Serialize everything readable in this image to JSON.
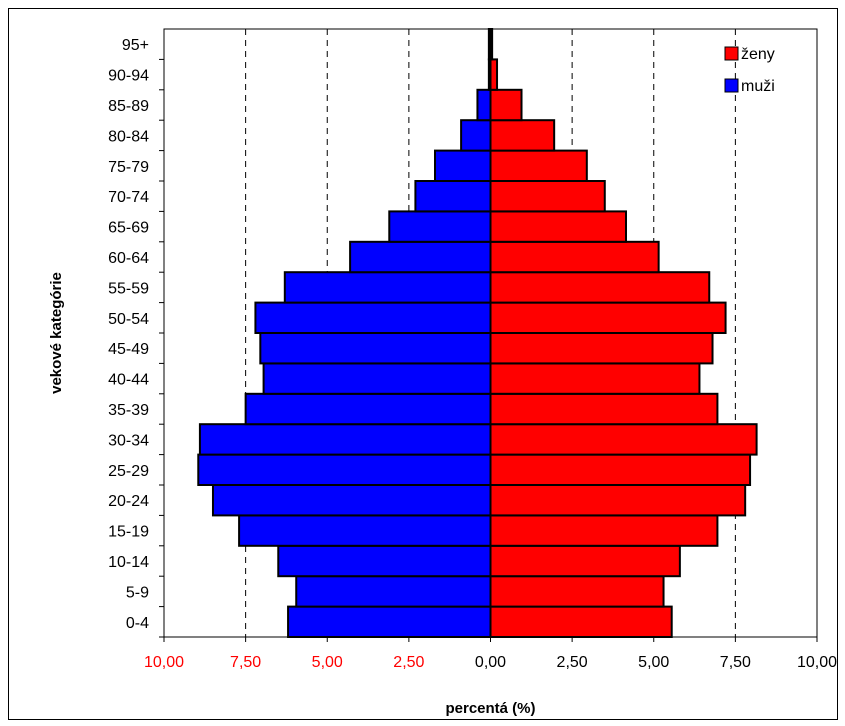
{
  "chart_data": {
    "type": "bar",
    "orientation": "horizontal",
    "layout": "population-pyramid",
    "categories": [
      "0-4",
      "5-9",
      "10-14",
      "15-19",
      "20-24",
      "25-29",
      "30-34",
      "35-39",
      "40-44",
      "45-49",
      "50-54",
      "55-59",
      "60-64",
      "65-69",
      "70-74",
      "75-79",
      "80-84",
      "85-89",
      "90-94",
      "95+"
    ],
    "series": [
      {
        "name": "muži",
        "color": "#0000FF",
        "side": "left",
        "values": [
          6.2,
          5.95,
          6.5,
          7.7,
          8.5,
          8.95,
          8.9,
          7.5,
          6.95,
          7.05,
          7.2,
          6.3,
          4.3,
          3.1,
          2.3,
          1.7,
          0.9,
          0.4,
          0.05,
          0.05
        ]
      },
      {
        "name": "ženy",
        "color": "#FF0000",
        "side": "right",
        "values": [
          5.55,
          5.3,
          5.8,
          6.95,
          7.8,
          7.95,
          8.15,
          6.95,
          6.4,
          6.8,
          7.2,
          6.7,
          5.15,
          4.15,
          3.5,
          2.95,
          1.95,
          0.95,
          0.2,
          0.05
        ]
      }
    ],
    "xlabel": "percentá (%)",
    "ylabel": "vekové kategórie",
    "xlim": [
      -10,
      10
    ],
    "xticks": [
      {
        "label": "10,00",
        "color": "#FF0000"
      },
      {
        "label": "7,50",
        "color": "#FF0000"
      },
      {
        "label": "5,00",
        "color": "#FF0000"
      },
      {
        "label": "2,50",
        "color": "#FF0000"
      },
      {
        "label": "0,00",
        "color": "#000000"
      },
      {
        "label": "2,50",
        "color": "#000000"
      },
      {
        "label": "5,00",
        "color": "#000000"
      },
      {
        "label": "7,50",
        "color": "#000000"
      },
      {
        "label": "10,00",
        "color": "#000000"
      }
    ],
    "grid": "vertical dashed",
    "legend_position": "top-right",
    "legend_order": [
      "ženy",
      "muži"
    ]
  }
}
